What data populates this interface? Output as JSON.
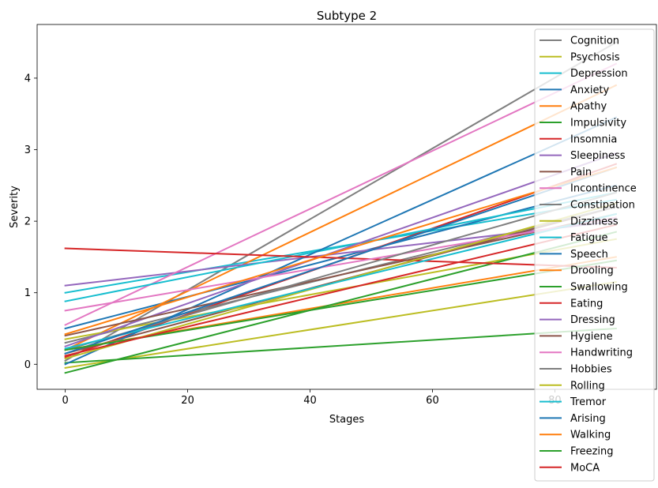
{
  "chart_data": {
    "type": "line",
    "title": "Subtype 2",
    "xlabel": "Stages",
    "ylabel": "Severity",
    "xlim": [
      -4.6,
      96.6
    ],
    "ylim": [
      -0.35,
      4.75
    ],
    "xticks": [
      0,
      20,
      40,
      60,
      80
    ],
    "yticks": [
      0,
      1,
      2,
      3,
      4
    ],
    "grid": false,
    "legend_position": "right",
    "x": [
      0,
      90
    ],
    "series": [
      {
        "name": "Cognition",
        "color": "#7f7f7f",
        "values": [
          0.05,
          4.5
        ]
      },
      {
        "name": "Psychosis",
        "color": "#bcbd22",
        "values": [
          -0.05,
          1.15
        ]
      },
      {
        "name": "Depression",
        "color": "#17becf",
        "values": [
          1.0,
          2.3
        ]
      },
      {
        "name": "Anxiety",
        "color": "#1f77b4",
        "values": [
          0.5,
          2.5
        ]
      },
      {
        "name": "Apathy",
        "color": "#ff7f0e",
        "values": [
          0.2,
          3.9
        ]
      },
      {
        "name": "Impulsivity",
        "color": "#2ca02c",
        "values": [
          0.02,
          0.5
        ]
      },
      {
        "name": "Insomnia",
        "color": "#d62728",
        "values": [
          0.1,
          2.8
        ]
      },
      {
        "name": "Sleepiness",
        "color": "#9467bd",
        "values": [
          1.1,
          2.0
        ]
      },
      {
        "name": "Pain",
        "color": "#8c564b",
        "values": [
          0.15,
          2.2
        ]
      },
      {
        "name": "Incontinence",
        "color": "#e377c2",
        "values": [
          0.55,
          4.2
        ]
      },
      {
        "name": "Constipation",
        "color": "#7f7f7f",
        "values": [
          0.3,
          2.2
        ]
      },
      {
        "name": "Dizziness",
        "color": "#bcbd22",
        "values": [
          0.35,
          1.75
        ]
      },
      {
        "name": "Fatigue",
        "color": "#17becf",
        "values": [
          0.88,
          2.4
        ]
      },
      {
        "name": "Speech",
        "color": "#1f77b4",
        "values": [
          0.0,
          3.45
        ]
      },
      {
        "name": "Drooling",
        "color": "#ff7f0e",
        "values": [
          0.2,
          1.5
        ]
      },
      {
        "name": "Swallowing",
        "color": "#2ca02c",
        "values": [
          -0.12,
          1.85
        ]
      },
      {
        "name": "Eating",
        "color": "#d62728",
        "values": [
          1.62,
          1.35
        ]
      },
      {
        "name": "Dressing",
        "color": "#9467bd",
        "values": [
          0.25,
          2.95
        ]
      },
      {
        "name": "Hygiene",
        "color": "#8c564b",
        "values": [
          0.4,
          2.1
        ]
      },
      {
        "name": "Handwriting",
        "color": "#e377c2",
        "values": [
          0.75,
          2.05
        ]
      },
      {
        "name": "Hobbies",
        "color": "#7f7f7f",
        "values": [
          0.2,
          2.4
        ]
      },
      {
        "name": "Rolling",
        "color": "#bcbd22",
        "values": [
          0.08,
          2.25
        ]
      },
      {
        "name": "Tremor",
        "color": "#17becf",
        "values": [
          0.22,
          2.1
        ]
      },
      {
        "name": "Arising",
        "color": "#1f77b4",
        "values": [
          0.15,
          2.75
        ]
      },
      {
        "name": "Walking",
        "color": "#ff7f0e",
        "values": [
          0.42,
          2.75
        ]
      },
      {
        "name": "Freezing",
        "color": "#2ca02c",
        "values": [
          0.2,
          1.45
        ]
      },
      {
        "name": "MoCA",
        "color": "#d62728",
        "values": [
          0.12,
          1.95
        ]
      }
    ]
  }
}
